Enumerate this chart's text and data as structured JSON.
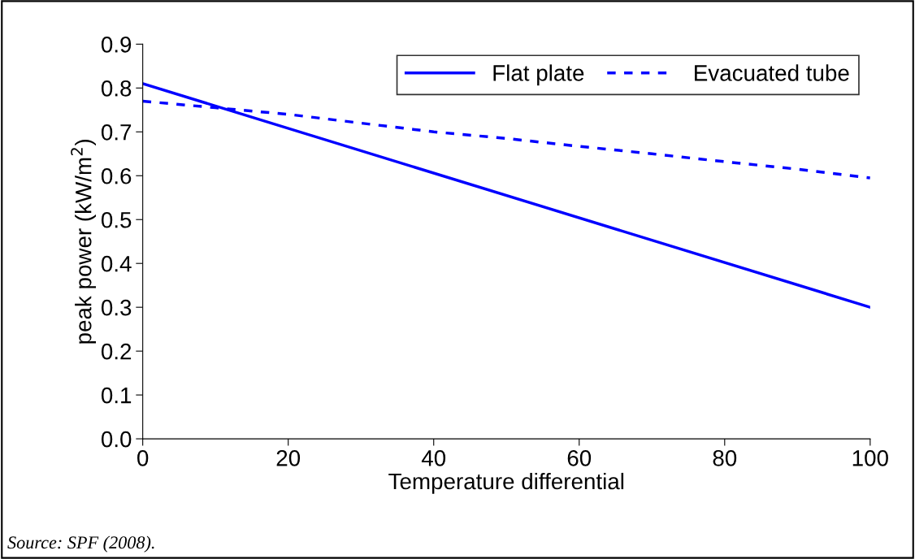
{
  "chart_data": {
    "type": "line",
    "xlabel": "Temperature differential",
    "ylabel": "peak power (kW/m$^{2}$)",
    "x": [
      0,
      10,
      20,
      30,
      40,
      50,
      60,
      70,
      80,
      90,
      100
    ],
    "series": [
      {
        "name": "Flat plate",
        "color": "#0000ff",
        "line_style": "solid",
        "x": [
          0,
          100
        ],
        "values": [
          0.81,
          0.3
        ]
      },
      {
        "name": "Evacuated tube",
        "color": "#0000ff",
        "line_style": "dashed",
        "values": [
          0.77,
          0.755,
          0.74,
          0.72,
          0.7,
          0.685,
          0.667,
          0.65,
          0.632,
          0.615,
          0.595
        ]
      }
    ],
    "xlim": [
      0,
      100
    ],
    "xticks": [
      0,
      20,
      40,
      60,
      80,
      100
    ],
    "ylim": [
      0,
      0.9
    ],
    "yticks": [
      {
        "value": 0,
        "label": "0.0"
      },
      0.1,
      0.2,
      0.3,
      0.4,
      0.5,
      0.6,
      0.7,
      0.8,
      0.9
    ],
    "grid": false,
    "legend": "top right",
    "marker": "none",
    "annotations": [
      "Source: SPF (2008)."
    ]
  }
}
